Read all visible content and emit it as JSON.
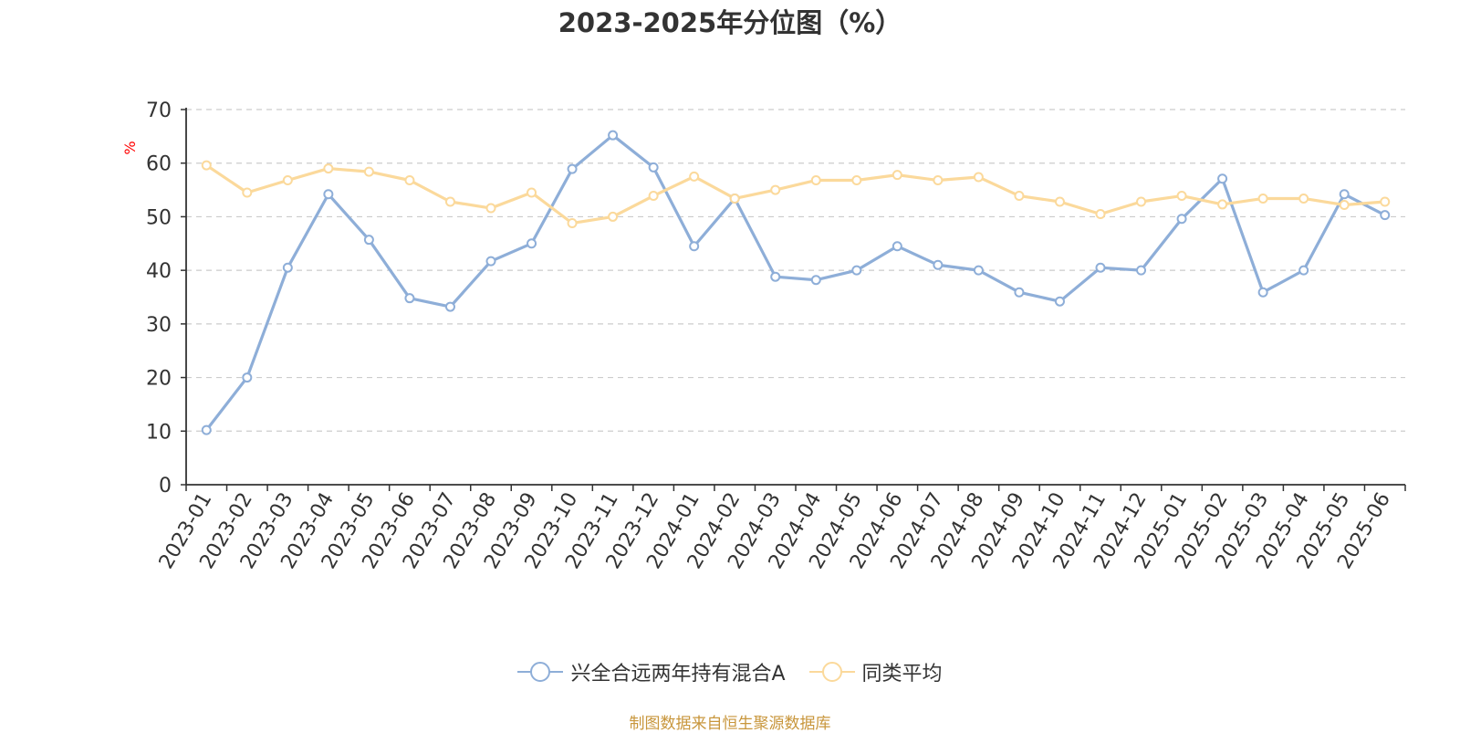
{
  "chart_data": {
    "type": "line",
    "title": "2023-2025年分位图（%）",
    "ylabel": "%",
    "xlabel": "",
    "ylim": [
      0,
      70
    ],
    "yticks": [
      0,
      10,
      20,
      30,
      40,
      50,
      60,
      70
    ],
    "grid": true,
    "legend_position": "bottom",
    "categories": [
      "2023-01",
      "2023-02",
      "2023-03",
      "2023-04",
      "2023-05",
      "2023-06",
      "2023-07",
      "2023-08",
      "2023-09",
      "2023-10",
      "2023-11",
      "2023-12",
      "2024-01",
      "2024-02",
      "2024-03",
      "2024-04",
      "2024-05",
      "2024-06",
      "2024-07",
      "2024-08",
      "2024-09",
      "2024-10",
      "2024-11",
      "2024-12",
      "2025-01",
      "2025-02",
      "2025-03",
      "2025-04",
      "2025-05",
      "2025-06"
    ],
    "series": [
      {
        "name": "兴全合远两年持有混合A",
        "color": "#8eaed8",
        "values": [
          10.2,
          20.0,
          40.5,
          54.2,
          45.7,
          34.8,
          33.2,
          41.7,
          45.0,
          58.9,
          65.2,
          59.2,
          44.5,
          53.4,
          38.8,
          38.2,
          40.0,
          44.5,
          41.0,
          40.0,
          35.9,
          34.2,
          40.5,
          40.0,
          49.6,
          57.1,
          35.9,
          40.0,
          54.2,
          50.3
        ]
      },
      {
        "name": "同类平均",
        "color": "#fbd99b",
        "values": [
          59.6,
          54.5,
          56.8,
          59.0,
          58.4,
          56.8,
          52.8,
          51.6,
          54.5,
          48.8,
          50.0,
          53.9,
          57.5,
          53.4,
          55.0,
          56.8,
          56.8,
          57.8,
          56.8,
          57.4,
          53.9,
          52.8,
          50.5,
          52.8,
          53.9,
          52.3,
          53.4,
          53.4,
          52.2,
          52.8
        ]
      }
    ]
  },
  "source_note": "制图数据来自恒生聚源数据库",
  "colors": {
    "axis": "#333333",
    "grid": "#cccccc",
    "ylabel": "#ff0000",
    "source": "#c8963c"
  }
}
